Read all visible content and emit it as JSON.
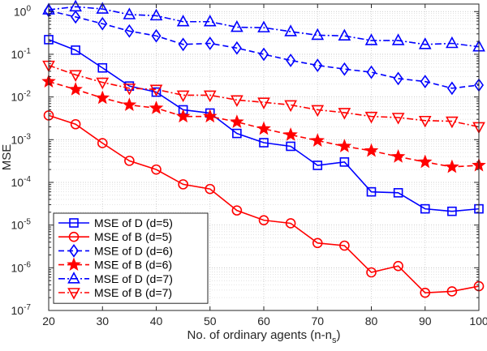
{
  "chart_data": {
    "type": "line",
    "xlabel": "No. of ordinary agents (n-n",
    "xlabel_sub": "s",
    "xlabel_close": ")",
    "ylabel": "MSE",
    "xlim": [
      20,
      100
    ],
    "ylim": [
      1e-07,
      1.5
    ],
    "yscale": "log",
    "grid": true,
    "legend_position": "bottom-left",
    "x": [
      20,
      25,
      30,
      35,
      40,
      45,
      50,
      55,
      60,
      65,
      70,
      75,
      80,
      85,
      90,
      95,
      100
    ],
    "x_ticks": [
      "20",
      "30",
      "40",
      "50",
      "60",
      "70",
      "80",
      "90",
      "100"
    ],
    "y_ticks": [
      {
        "base": "10",
        "exp": "0"
      },
      {
        "base": "10",
        "exp": "-1"
      },
      {
        "base": "10",
        "exp": "-2"
      },
      {
        "base": "10",
        "exp": "-3"
      },
      {
        "base": "10",
        "exp": "-4"
      },
      {
        "base": "10",
        "exp": "-5"
      },
      {
        "base": "10",
        "exp": "-6"
      },
      {
        "base": "10",
        "exp": "-7"
      }
    ],
    "series": [
      {
        "name": "MSE of D (d=5)",
        "color": "#0000ff",
        "marker": "square",
        "dash": "solid",
        "values": [
          0.22,
          0.125,
          0.048,
          0.018,
          0.013,
          0.005,
          0.0042,
          0.0014,
          0.00085,
          0.0007,
          0.00025,
          0.0003,
          6e-05,
          5.7e-05,
          2.4e-05,
          2.1e-05,
          2.4e-05
        ]
      },
      {
        "name": "MSE of B (d=5)",
        "color": "#ff0000",
        "marker": "circle",
        "dash": "solid",
        "values": [
          0.0037,
          0.0023,
          0.00083,
          0.00032,
          0.0002,
          9e-05,
          7e-05,
          2.2e-05,
          1.3e-05,
          1.1e-05,
          3.8e-06,
          3.3e-06,
          7.8e-07,
          1.1e-06,
          2.6e-07,
          2.8e-07,
          3.7e-07
        ]
      },
      {
        "name": "MSE of D (d=6)",
        "color": "#0000ff",
        "marker": "diamond",
        "dash": "dashed",
        "values": [
          1.05,
          0.75,
          0.52,
          0.35,
          0.27,
          0.17,
          0.18,
          0.14,
          0.1,
          0.072,
          0.055,
          0.045,
          0.038,
          0.027,
          0.023,
          0.016,
          0.019
        ]
      },
      {
        "name": "MSE of B (d=6)",
        "color": "#ff0000",
        "marker": "star",
        "dash": "dashed",
        "values": [
          0.023,
          0.015,
          0.0095,
          0.0065,
          0.0055,
          0.0035,
          0.0035,
          0.0026,
          0.0018,
          0.0013,
          0.00095,
          0.0007,
          0.00055,
          0.0004,
          0.0003,
          0.00023,
          0.00025
        ]
      },
      {
        "name": "MSE of D (d=7)",
        "color": "#0000ff",
        "marker": "triangle-up",
        "dash": "dashdot",
        "values": [
          1.1,
          1.3,
          1.15,
          0.85,
          0.8,
          0.58,
          0.58,
          0.43,
          0.42,
          0.34,
          0.28,
          0.27,
          0.21,
          0.21,
          0.17,
          0.18,
          0.15
        ]
      },
      {
        "name": "MSE of B (d=7)",
        "color": "#ff0000",
        "marker": "triangle-down",
        "dash": "dashdot",
        "values": [
          0.055,
          0.033,
          0.022,
          0.016,
          0.015,
          0.011,
          0.011,
          0.0085,
          0.0075,
          0.0065,
          0.005,
          0.0043,
          0.0035,
          0.0033,
          0.0028,
          0.0027,
          0.002
        ]
      }
    ]
  }
}
